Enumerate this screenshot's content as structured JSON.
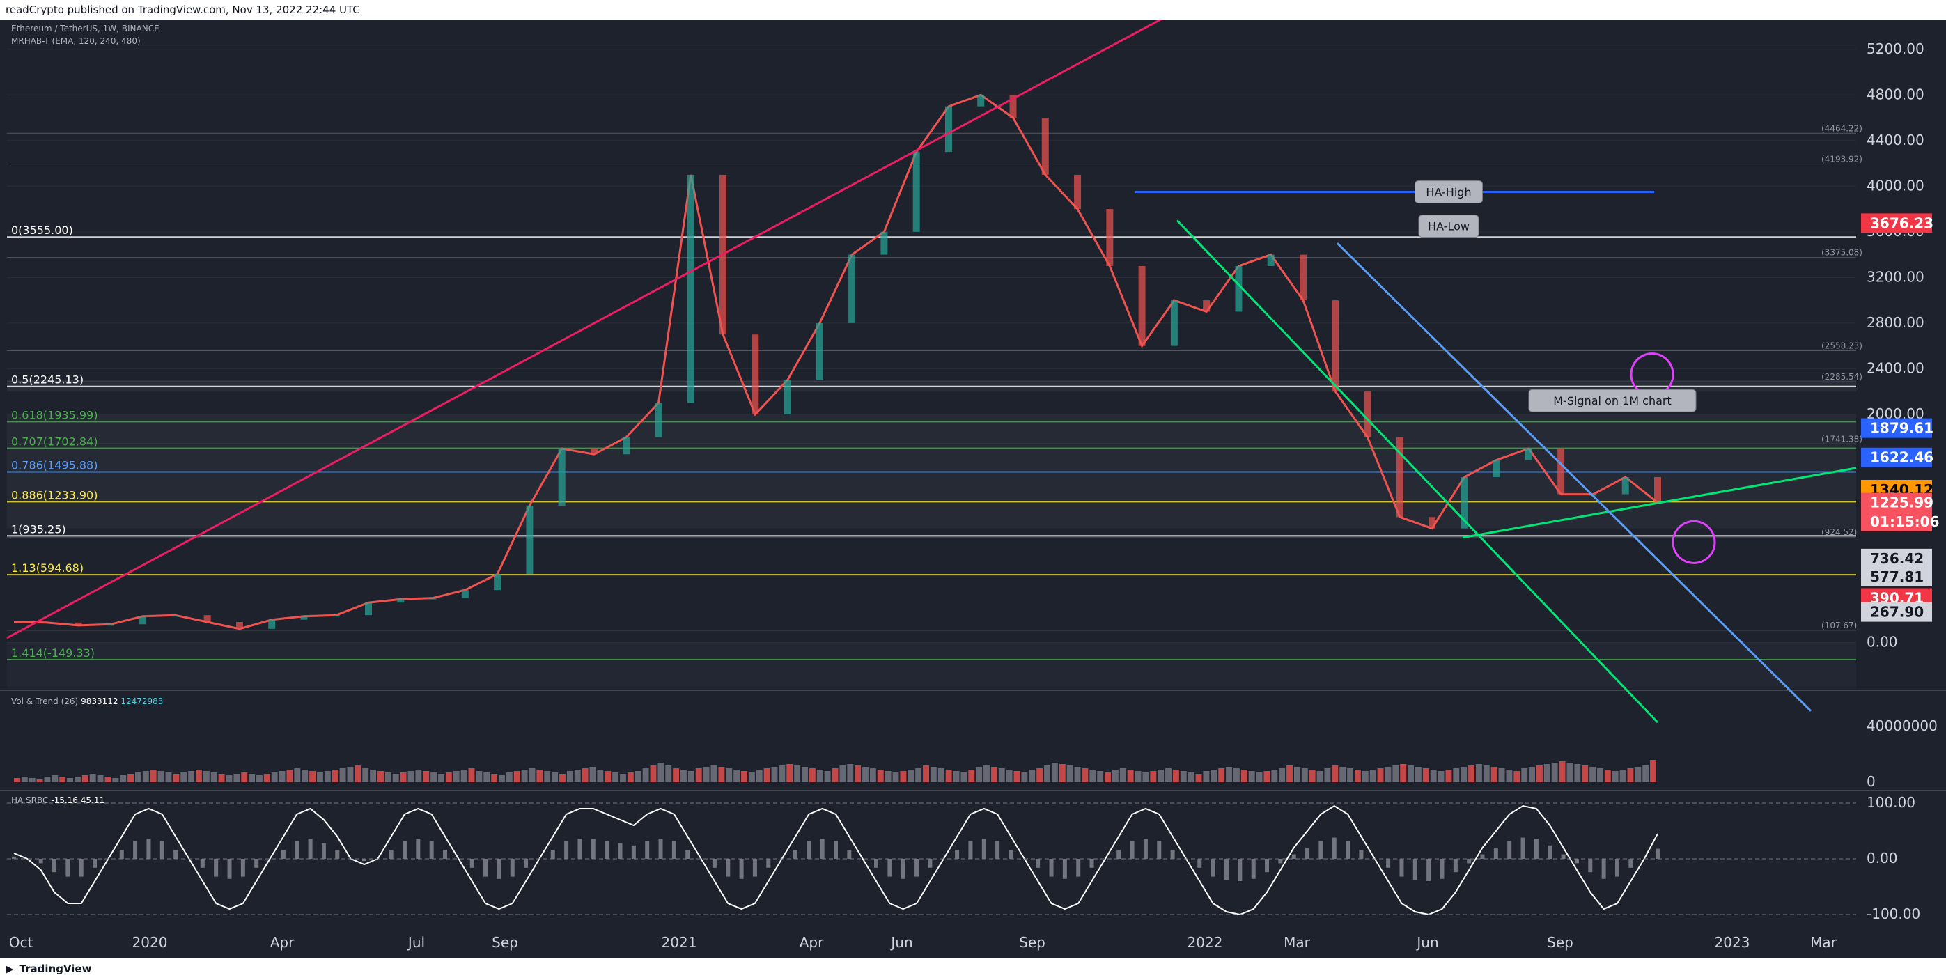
{
  "header": {
    "published": "readCrypto published on TradingView.com, Nov 13, 2022 22:44 UTC"
  },
  "footer": {
    "brand": "TradingView",
    "logo_icon": "tradingview-logo-icon"
  },
  "legends": {
    "symbol": "Ethereum / TetherUS, 1W, BINANCE",
    "mrhab": "MRHAB-T (EMA, 120, 240, 480)",
    "vol_trend": "Vol & Trend (26)",
    "vol_trend_values": [
      "9833112",
      "12472983"
    ],
    "ha_srbc": "HA SRBC",
    "ha_srbc_values": [
      "-15.16",
      "45.11"
    ]
  },
  "colors": {
    "background": "#1e222d",
    "up": "#26a69a",
    "down": "#ef5350",
    "fib": "#5b9cf6",
    "green_line": "#00e676",
    "magenta": "#e91e63",
    "orange": "#f7931a",
    "blue_ema": "#2962ff"
  },
  "chart_data": [
    {
      "type": "line",
      "title": "",
      "ylim": [
        -400,
        5400
      ],
      "x_ticks": [
        "Oct",
        "2020",
        "Apr",
        "Jul",
        "Sep",
        "2021",
        "Apr",
        "Jun",
        "Sep",
        "2022",
        "Mar",
        "Jun",
        "Sep",
        "2023",
        "Mar"
      ],
      "y_ticks": [
        "5200.00",
        "4800.00",
        "4400.00",
        "4000.00",
        "3600.00",
        "3200.00",
        "2800.00",
        "2400.00",
        "2000.00",
        "0.00"
      ],
      "price_line": {
        "name": "",
        "values": [
          180,
          175,
          150,
          160,
          230,
          240,
          180,
          120,
          200,
          230,
          240,
          350,
          380,
          390,
          460,
          600,
          1200,
          1700,
          1650,
          1800,
          2100,
          4100,
          2700,
          2000,
          2300,
          2800,
          3400,
          3600,
          4300,
          4700,
          4800,
          4600,
          4100,
          3800,
          3300,
          2600,
          3000,
          2900,
          3300,
          3400,
          3000,
          2200,
          1800,
          1100,
          1000,
          1450,
          1600,
          1700,
          1300,
          1300,
          1450,
          1225.99
        ]
      },
      "fib_levels": [
        {
          "label": "0(3555.00)",
          "value": 3555.0
        },
        {
          "label": "0.5(2245.13)",
          "value": 2245.13
        },
        {
          "label": "0.618(1935.99)",
          "value": 1935.99
        },
        {
          "label": "0.707(1702.84)",
          "value": 1702.84
        },
        {
          "label": "0.786(1495.88)",
          "value": 1495.88
        },
        {
          "label": "0.886(1233.90)",
          "value": 1233.9
        },
        {
          "label": "1(935.25)",
          "value": 935.25
        },
        {
          "label": "1.13(594.68)",
          "value": 594.68
        },
        {
          "label": "1.414(-149.33)",
          "value": -149.33
        }
      ],
      "right_labels": [
        {
          "text": "(4464.22)",
          "value": 4464.22
        },
        {
          "text": "(4193.92)",
          "value": 4193.92
        },
        {
          "text": "(3375.08)",
          "value": 3375.08
        },
        {
          "text": "(2558.23)",
          "value": 2558.23
        },
        {
          "text": "(2285.54)",
          "value": 2285.54
        },
        {
          "text": "(1741.38)",
          "value": 1741.38
        },
        {
          "text": "(924.52)",
          "value": 924.52
        },
        {
          "text": "(107.67)",
          "value": 107.67
        }
      ],
      "price_tags": [
        {
          "text": "3676.23",
          "value": 3676.23,
          "bg": "#f23645",
          "fg": "#ffffff"
        },
        {
          "text": "1879.61",
          "value": 1879.61,
          "bg": "#2962ff",
          "fg": "#ffffff"
        },
        {
          "text": "1622.46",
          "value": 1622.46,
          "bg": "#2962ff",
          "fg": "#ffffff"
        },
        {
          "text": "1340.12",
          "value": 1340.12,
          "bg": "#ff9800",
          "fg": "#000000"
        },
        {
          "text": "1225.99",
          "value": 1225.99,
          "bg": "#f7525f",
          "fg": "#ffffff"
        },
        {
          "text": "01:15:06",
          "value": 1060,
          "bg": "#f7525f",
          "fg": "#ffffff"
        },
        {
          "text": "736.42",
          "value": 736.42,
          "bg": "#d1d4dc",
          "fg": "#131722"
        },
        {
          "text": "577.81",
          "value": 577.81,
          "bg": "#d1d4dc",
          "fg": "#131722"
        },
        {
          "text": "390.71",
          "value": 390.71,
          "bg": "#f23645",
          "fg": "#ffffff"
        },
        {
          "text": "267.90",
          "value": 267.9,
          "bg": "#d1d4dc",
          "fg": "#131722"
        }
      ],
      "annotations": [
        "HA-High",
        "HA-Low",
        "M-Signal on 1M chart"
      ]
    },
    {
      "type": "bar",
      "name": "Vol & Trend",
      "ylim": [
        0,
        60000000
      ],
      "y_ticks": [
        "40000000",
        "0"
      ],
      "values": [
        3,
        4,
        3,
        2,
        4,
        5,
        4,
        3,
        4,
        5,
        6,
        5,
        4,
        3,
        5,
        6,
        7,
        8,
        9,
        8,
        7,
        6,
        7,
        8,
        9,
        8,
        7,
        6,
        5,
        6,
        7,
        6,
        5,
        6,
        7,
        8,
        9,
        10,
        9,
        8,
        7,
        8,
        9,
        10,
        11,
        12,
        10,
        9,
        8,
        7,
        6,
        7,
        8,
        9,
        8,
        7,
        6,
        7,
        8,
        9,
        10,
        8,
        7,
        6,
        5,
        7,
        8,
        9,
        10,
        9,
        8,
        7,
        6,
        8,
        9,
        10,
        11,
        9,
        8,
        7,
        6,
        7,
        8,
        10,
        12,
        14,
        12,
        10,
        9,
        8,
        10,
        11,
        12,
        11,
        10,
        9,
        8,
        7,
        9,
        10,
        11,
        12,
        13,
        12,
        11,
        10,
        9,
        8,
        10,
        12,
        13,
        12,
        11,
        10,
        9,
        8,
        7,
        8,
        9,
        10,
        12,
        11,
        10,
        9,
        8,
        7,
        9,
        11,
        12,
        11,
        10,
        9,
        8,
        7,
        9,
        10,
        12,
        14,
        13,
        12,
        11,
        10,
        9,
        8,
        7,
        9,
        10,
        9,
        8,
        7,
        8,
        9,
        10,
        9,
        8,
        7,
        6,
        8,
        9,
        10,
        11,
        10,
        9,
        8,
        7,
        8,
        9,
        10,
        12,
        11,
        10,
        9,
        8,
        10,
        12,
        11,
        10,
        9,
        8,
        9,
        10,
        11,
        12,
        13,
        12,
        11,
        10,
        9,
        8,
        9,
        10,
        11,
        12,
        13,
        12,
        11,
        10,
        9,
        8,
        10,
        11,
        12,
        13,
        14,
        15,
        14,
        13,
        12,
        11,
        10,
        9,
        8,
        9,
        10,
        11,
        12,
        16
      ]
    },
    {
      "type": "line",
      "name": "HA SRBC",
      "ylim": [
        -100,
        100
      ],
      "y_ticks": [
        "100.00",
        "0.00",
        "-100.00"
      ],
      "values": [
        10,
        0,
        -20,
        -60,
        -80,
        -80,
        -40,
        0,
        40,
        80,
        90,
        80,
        40,
        0,
        -40,
        -80,
        -90,
        -80,
        -40,
        0,
        40,
        80,
        90,
        70,
        40,
        0,
        -10,
        0,
        40,
        80,
        90,
        80,
        40,
        0,
        -40,
        -80,
        -90,
        -80,
        -40,
        0,
        40,
        80,
        90,
        90,
        80,
        70,
        60,
        80,
        90,
        80,
        40,
        0,
        -40,
        -80,
        -90,
        -80,
        -40,
        0,
        40,
        80,
        90,
        80,
        40,
        0,
        -40,
        -80,
        -90,
        -80,
        -40,
        0,
        40,
        80,
        90,
        80,
        40,
        0,
        -40,
        -80,
        -90,
        -80,
        -40,
        0,
        40,
        80,
        90,
        80,
        40,
        0,
        -40,
        -80,
        -95,
        -100,
        -90,
        -60,
        -20,
        20,
        50,
        80,
        95,
        80,
        40,
        0,
        -40,
        -80,
        -95,
        -100,
        -90,
        -60,
        -20,
        20,
        50,
        80,
        95,
        90,
        60,
        20,
        -20,
        -60,
        -90,
        -80,
        -40,
        0,
        45
      ]
    }
  ]
}
